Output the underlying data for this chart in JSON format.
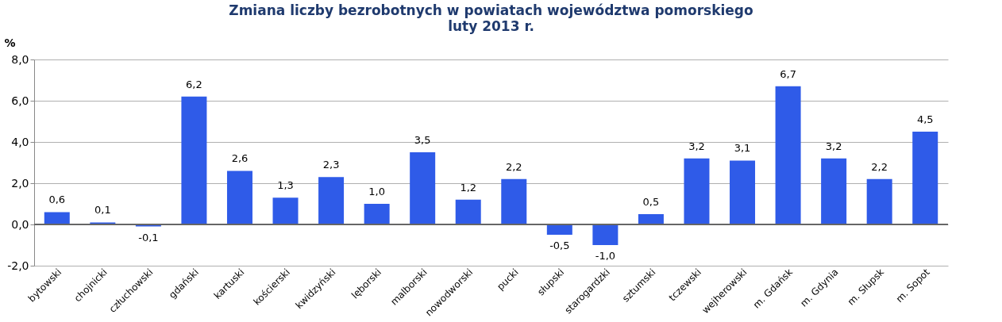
{
  "chart_data": {
    "type": "bar",
    "title": "Zmiana liczby bezrobotnych w powiatach województwa pomorskiego",
    "subtitle": "luty 2013 r.",
    "ylabel": "%",
    "categories": [
      "bytowski",
      "chojnicki",
      "człuchowski",
      "gdański",
      "kartuski",
      "kościerski",
      "kwidzyński",
      "lęborski",
      "malborski",
      "nowodworski",
      "pucki",
      "słupski",
      "starogardzki",
      "sztumski",
      "tczewski",
      "wejherowski",
      "m. Gdańsk",
      "m. Gdynia",
      "m. Słupsk",
      "m. Sopot"
    ],
    "values": [
      0.6,
      0.1,
      -0.1,
      6.2,
      2.6,
      1.3,
      2.3,
      1.0,
      3.5,
      1.2,
      2.2,
      -0.5,
      -1.0,
      0.5,
      3.2,
      3.1,
      6.7,
      3.2,
      2.2,
      4.5
    ],
    "value_labels": [
      "0,6",
      "0,1",
      "-0,1",
      "6,2",
      "2,6",
      "1,3",
      "2,3",
      "1,0",
      "3,5",
      "1,2",
      "2,2",
      "-0,5",
      "-1,0",
      "0,5",
      "3,2",
      "3,1",
      "6,7",
      "3,2",
      "2,2",
      "4,5"
    ],
    "color": "#2f5be8",
    "ylim": [
      -2,
      8
    ],
    "yticks": [
      {
        "value": -2,
        "label": "-2,0"
      },
      {
        "value": 0,
        "label": "0,0"
      },
      {
        "value": 2,
        "label": "2,0"
      },
      {
        "value": 4,
        "label": "4,0"
      },
      {
        "value": 6,
        "label": "6,0"
      },
      {
        "value": 8,
        "label": "8,0"
      }
    ],
    "grid": "y"
  }
}
